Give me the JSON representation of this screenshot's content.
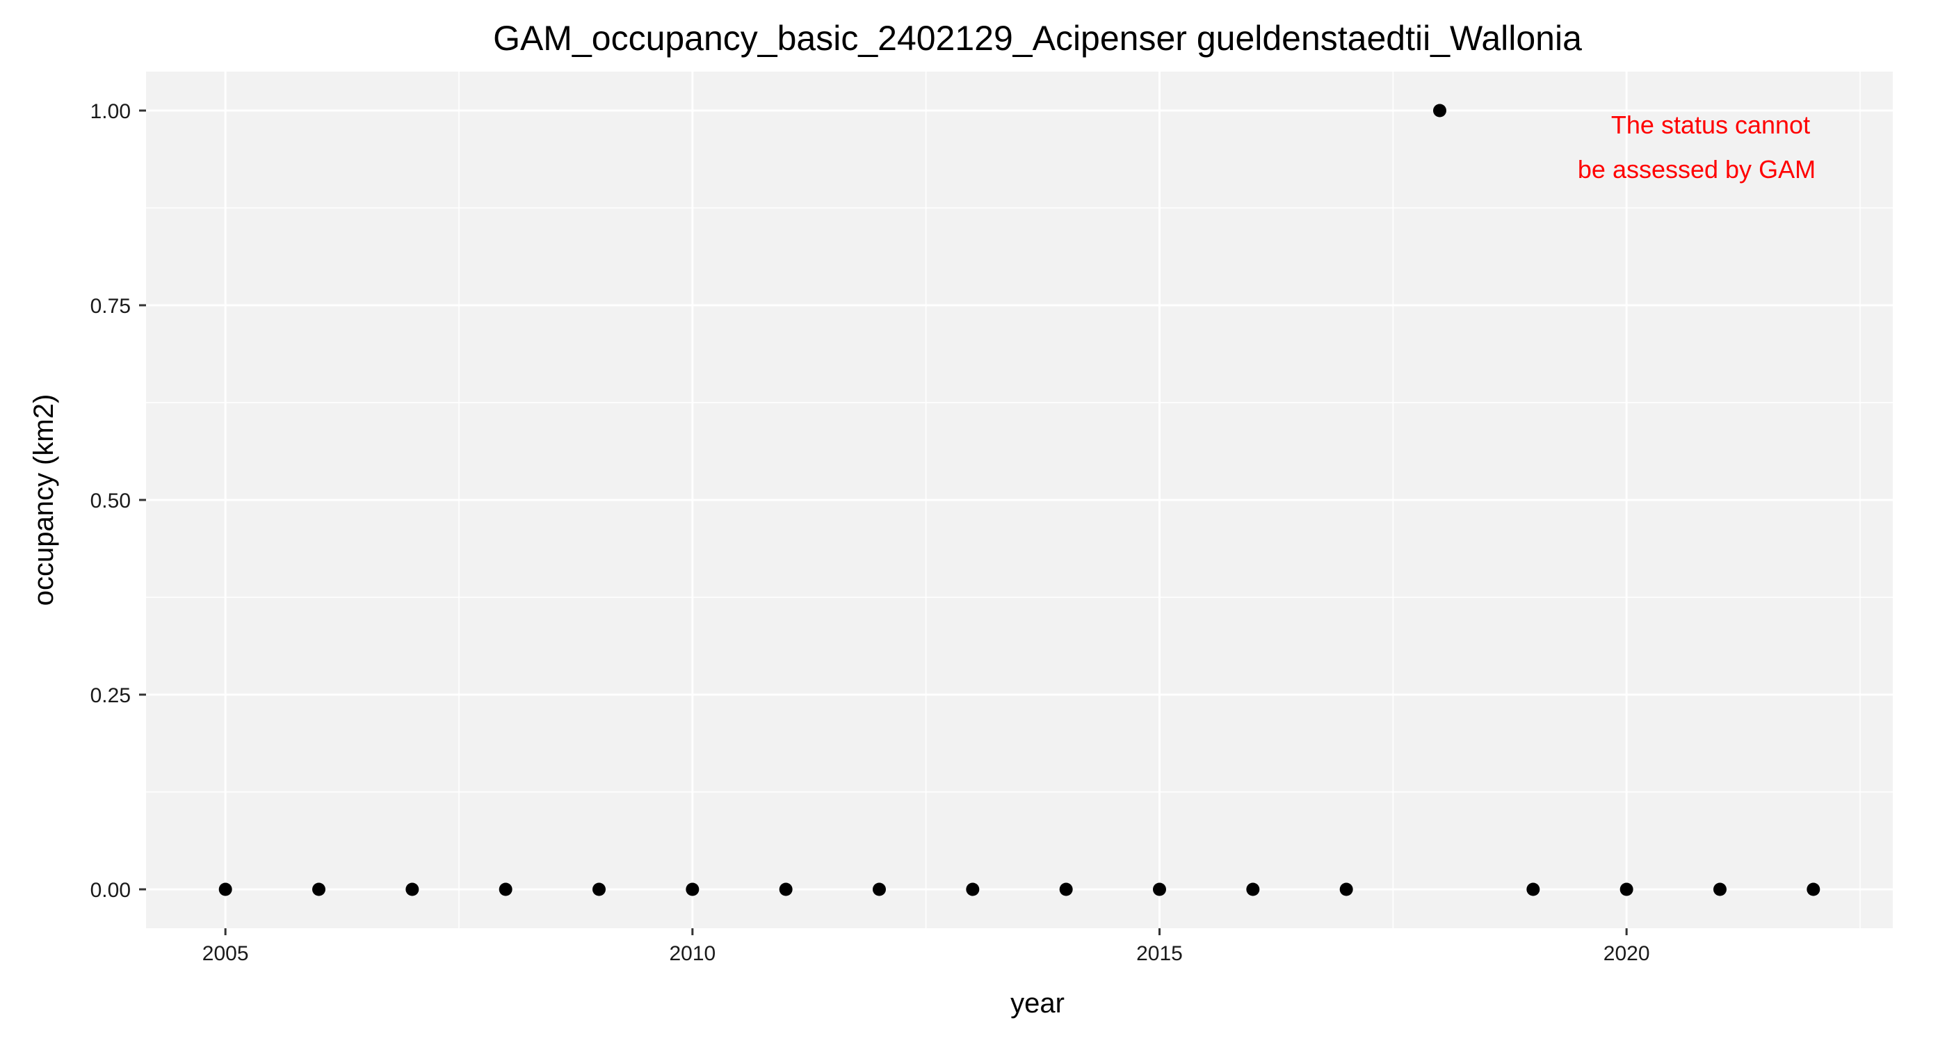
{
  "chart_data": {
    "type": "scatter",
    "title": "GAM_occupancy_basic_2402129_Acipenser gueldenstaedtii_Wallonia",
    "xlabel": "year",
    "ylabel": "occupancy (km2)",
    "xlim": [
      2004.15,
      2022.85
    ],
    "ylim": [
      -0.05,
      1.05
    ],
    "x_ticks": [
      2005,
      2010,
      2015,
      2020
    ],
    "y_ticks": [
      0,
      0.25,
      0.5,
      0.75,
      1
    ],
    "x_tick_labels": [
      "2005",
      "2010",
      "2015",
      "2020"
    ],
    "y_tick_labels": [
      "0.00",
      "0.25",
      "0.50",
      "0.75",
      "1.00"
    ],
    "grid": true,
    "points": [
      {
        "x": 2005,
        "y": 0
      },
      {
        "x": 2006,
        "y": 0
      },
      {
        "x": 2007,
        "y": 0
      },
      {
        "x": 2008,
        "y": 0
      },
      {
        "x": 2009,
        "y": 0
      },
      {
        "x": 2010,
        "y": 0
      },
      {
        "x": 2011,
        "y": 0
      },
      {
        "x": 2012,
        "y": 0
      },
      {
        "x": 2013,
        "y": 0
      },
      {
        "x": 2014,
        "y": 0
      },
      {
        "x": 2015,
        "y": 0
      },
      {
        "x": 2016,
        "y": 0
      },
      {
        "x": 2017,
        "y": 0
      },
      {
        "x": 2018,
        "y": 1
      },
      {
        "x": 2019,
        "y": 0
      },
      {
        "x": 2020,
        "y": 0
      },
      {
        "x": 2021,
        "y": 0
      },
      {
        "x": 2022,
        "y": 0
      }
    ],
    "annotation": {
      "lines": [
        "The status cannot",
        "be assessed by GAM"
      ],
      "color": "#ff0000",
      "position": "top-right"
    },
    "colors": {
      "panel": "#f2f2f2",
      "grid": "#ffffff",
      "point": "#000000"
    }
  }
}
